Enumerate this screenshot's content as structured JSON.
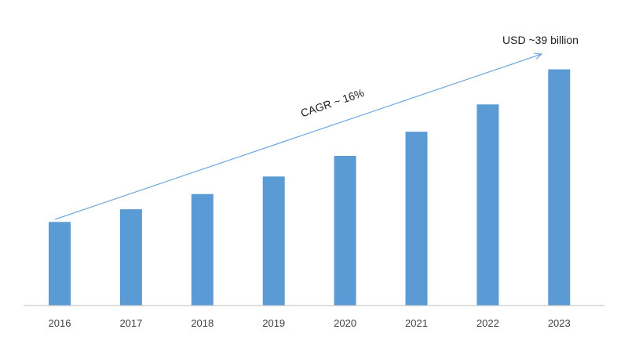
{
  "chart_data": {
    "type": "bar",
    "title": "",
    "xlabel": "",
    "ylabel": "",
    "categories": [
      "2016",
      "2017",
      "2018",
      "2019",
      "2020",
      "2021",
      "2022",
      "2023"
    ],
    "values": [
      13.8,
      15.9,
      18.4,
      21.3,
      24.7,
      28.7,
      33.2,
      39.0
    ],
    "ylim": [
      0,
      41
    ],
    "grid": false,
    "legend": "none",
    "bar_color": "#5b9bd5",
    "axis_color": "#bfbfbf",
    "arrow_color": "#6fa8dc",
    "annotations": {
      "cagr": "CAGR ~ 16%",
      "end_value": "USD ~39 billion"
    }
  }
}
